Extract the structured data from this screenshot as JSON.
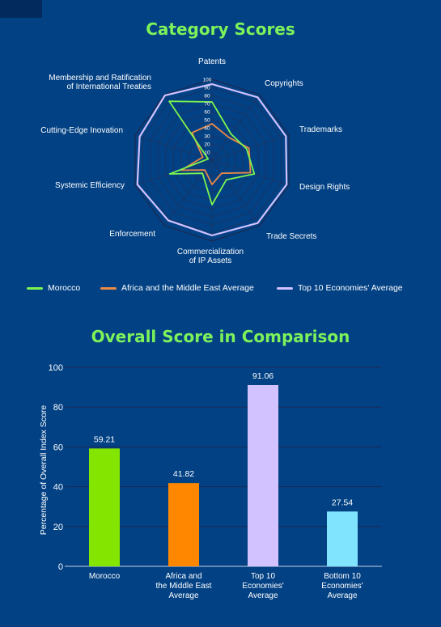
{
  "radar_title": "Category Scores",
  "bar_title": "Overall Score in Comparison",
  "colors": {
    "background": "#024184",
    "title": "#7df25a",
    "morocco": "#7cf550",
    "africa": "#e98a47",
    "top10": "#d2c2ff",
    "bottom10": "#80e4ff",
    "bar_africa": "#ff8700"
  },
  "chart_data": [
    {
      "type": "radar",
      "title": "Category Scores",
      "axes": [
        [
          "Patents"
        ],
        [
          "Copyrights"
        ],
        [
          "Trademarks"
        ],
        [
          "Design Rights"
        ],
        [
          "Trade Secrets"
        ],
        [
          "Commercialization",
          "of IP Assets"
        ],
        [
          "Enforcement"
        ],
        [
          "Systemic Efficiency"
        ],
        [
          "Cutting-Edge Inovation"
        ],
        [
          "Membership and Ratification",
          "of International Treaties"
        ]
      ],
      "ticks": [
        "10",
        "20",
        "30",
        "40",
        "50",
        "60",
        "70",
        "80",
        "90",
        "100"
      ],
      "rmax": 100,
      "series": [
        {
          "name": "Morocco",
          "values": [
            72,
            40,
            45,
            55,
            30,
            55,
            20,
            55,
            5,
            90
          ]
        },
        {
          "name": "Africa and the Middle East Average",
          "values": [
            45,
            35,
            48,
            50,
            20,
            30,
            15,
            40,
            12,
            42
          ]
        },
        {
          "name": "Top 10 Economies' Average",
          "values": [
            94,
            96,
            96,
            97,
            96,
            93,
            92,
            97,
            94,
            99
          ]
        }
      ],
      "legend_position": "bottom"
    },
    {
      "type": "bar",
      "title": "Overall Score in Comparison",
      "categories": [
        [
          "Morocco"
        ],
        [
          "Africa and",
          "the Middle East",
          "Average"
        ],
        [
          "Top 10",
          "Economies'",
          "Average"
        ],
        [
          "Bottom 10",
          "Economies'",
          "Average"
        ]
      ],
      "values": [
        59.21,
        41.82,
        91.06,
        27.54
      ],
      "value_labels": [
        "59.21",
        "41.82",
        "91.06",
        "27.54"
      ],
      "ylabel": "Percentage of Overall Index Score",
      "ylim": [
        0,
        100
      ],
      "yticks": [
        "0",
        "20",
        "40",
        "60",
        "80",
        "100"
      ],
      "grid": true
    }
  ]
}
